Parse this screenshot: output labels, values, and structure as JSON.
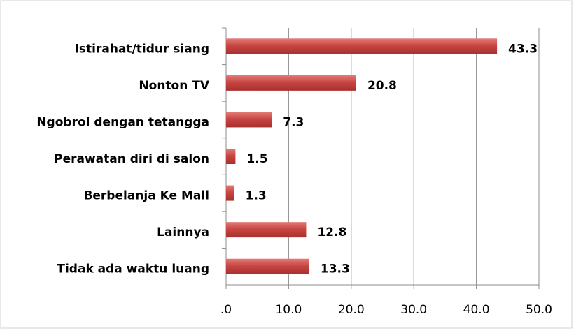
{
  "chart_data": {
    "type": "bar",
    "orientation": "horizontal",
    "categories": [
      "Istirahat/tidur siang",
      "Nonton TV",
      "Ngobrol dengan tetangga",
      "Perawatan diri di salon",
      "Berbelanja Ke Mall",
      "Lainnya",
      "Tidak ada waktu luang"
    ],
    "values": [
      43.3,
      20.8,
      7.3,
      1.5,
      1.3,
      12.8,
      13.3
    ],
    "color": "#c84643",
    "xlim": [
      0,
      50
    ],
    "xticks": [
      {
        "value": 0,
        "label": ".0"
      },
      {
        "value": 10,
        "label": "10.0"
      },
      {
        "value": 20,
        "label": "20.0"
      },
      {
        "value": 30,
        "label": "30.0"
      },
      {
        "value": 40,
        "label": "40.0"
      },
      {
        "value": 50,
        "label": "50.0"
      }
    ],
    "grid": true
  }
}
